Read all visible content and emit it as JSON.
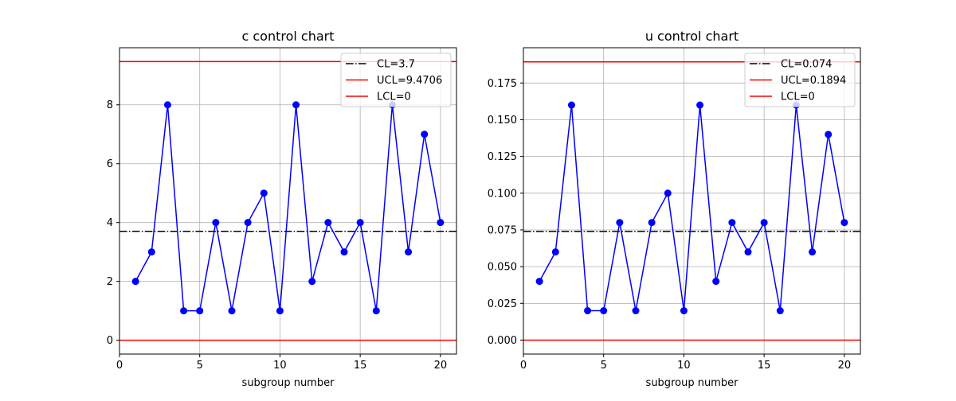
{
  "chart_data": [
    {
      "type": "line",
      "title": "c control chart",
      "xlabel": "subgroup number",
      "ylabel": "",
      "xlim": [
        0,
        21
      ],
      "ylim": [
        -0.47,
        9.94
      ],
      "xticks": [
        0,
        5,
        10,
        15,
        20
      ],
      "xtick_labels": [
        "0",
        "5",
        "10",
        "15",
        "20"
      ],
      "yticks": [
        0,
        2,
        4,
        6,
        8
      ],
      "ytick_labels": [
        "0",
        "2",
        "4",
        "6",
        "8"
      ],
      "grid": true,
      "legend_position": "top-right",
      "x": [
        1,
        2,
        3,
        4,
        5,
        6,
        7,
        8,
        9,
        10,
        11,
        12,
        13,
        14,
        15,
        16,
        17,
        18,
        19,
        20
      ],
      "series": [
        {
          "values": [
            2,
            3,
            8,
            1,
            1,
            4,
            1,
            4,
            5,
            1,
            8,
            2,
            4,
            3,
            4,
            1,
            8,
            3,
            7,
            4
          ],
          "color": "#0000ff"
        }
      ],
      "lines": [
        {
          "label": "CL=3.7",
          "value": 3.7,
          "color": "#000000",
          "style": "dashdot"
        },
        {
          "label": "UCL=9.4706",
          "value": 9.4706,
          "color": "#ff0000",
          "style": "solid"
        },
        {
          "label": "LCL=0",
          "value": 0,
          "color": "#ff0000",
          "style": "solid"
        }
      ]
    },
    {
      "type": "line",
      "title": "u control chart",
      "xlabel": "subgroup number",
      "ylabel": "",
      "xlim": [
        0,
        21
      ],
      "ylim": [
        -0.0095,
        0.199
      ],
      "xticks": [
        0,
        5,
        10,
        15,
        20
      ],
      "xtick_labels": [
        "0",
        "5",
        "10",
        "15",
        "20"
      ],
      "yticks": [
        0,
        0.025,
        0.05,
        0.075,
        0.1,
        0.125,
        0.15,
        0.175
      ],
      "ytick_labels": [
        "0.000",
        "0.025",
        "0.050",
        "0.075",
        "0.100",
        "0.125",
        "0.150",
        "0.175"
      ],
      "grid": true,
      "legend_position": "top-right",
      "x": [
        1,
        2,
        3,
        4,
        5,
        6,
        7,
        8,
        9,
        10,
        11,
        12,
        13,
        14,
        15,
        16,
        17,
        18,
        19,
        20
      ],
      "series": [
        {
          "values": [
            0.04,
            0.06,
            0.16,
            0.02,
            0.02,
            0.08,
            0.02,
            0.08,
            0.1,
            0.02,
            0.16,
            0.04,
            0.08,
            0.06,
            0.08,
            0.02,
            0.16,
            0.06,
            0.14,
            0.08
          ],
          "color": "#0000ff"
        }
      ],
      "lines": [
        {
          "label": "CL=0.074",
          "value": 0.074,
          "color": "#000000",
          "style": "dashdot"
        },
        {
          "label": "UCL=0.1894",
          "value": 0.1894,
          "color": "#ff0000",
          "style": "solid"
        },
        {
          "label": "LCL=0",
          "value": 0,
          "color": "#ff0000",
          "style": "solid"
        }
      ]
    }
  ]
}
